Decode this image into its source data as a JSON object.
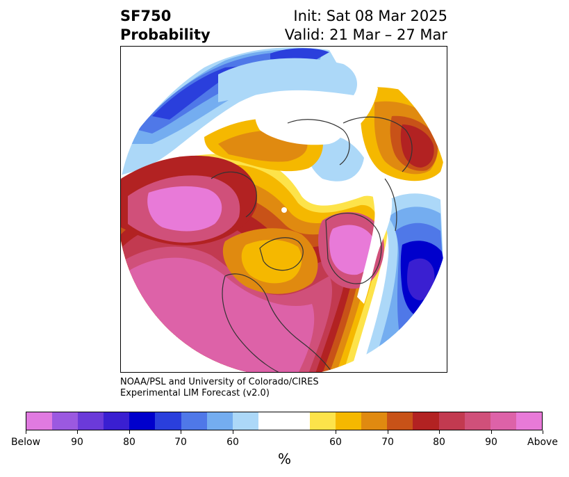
{
  "title": {
    "variable": "SF750",
    "subtitle": "Probability",
    "init": "Init: Sat 08 Mar 2025",
    "valid": "Valid: 21 Mar – 27 Mar"
  },
  "credit": {
    "line1": "NOAA/PSL and University of Colorado/CIRES",
    "line2": "Experimental LIM Forecast (v2.0)"
  },
  "colorbar": {
    "colors": [
      "#e07ae0",
      "#9b59e0",
      "#6b3ad9",
      "#3a1fd1",
      "#0000cc",
      "#2a3fdc",
      "#4f78e8",
      "#74adf0",
      "#acd8f8",
      "#ffffff",
      "#ffffff",
      "#fde34a",
      "#f5b800",
      "#e08a10",
      "#c85218",
      "#b22222",
      "#c23a50",
      "#d0507a",
      "#dd62a8",
      "#e87ad8"
    ],
    "tick_labels": [
      "Below",
      "90",
      "80",
      "70",
      "60",
      "60",
      "70",
      "80",
      "90",
      "Above"
    ],
    "label": "%"
  },
  "map": {
    "description_regions": [
      "north-america",
      "pacific",
      "atlantic",
      "europe",
      "asia",
      "arctic"
    ]
  }
}
